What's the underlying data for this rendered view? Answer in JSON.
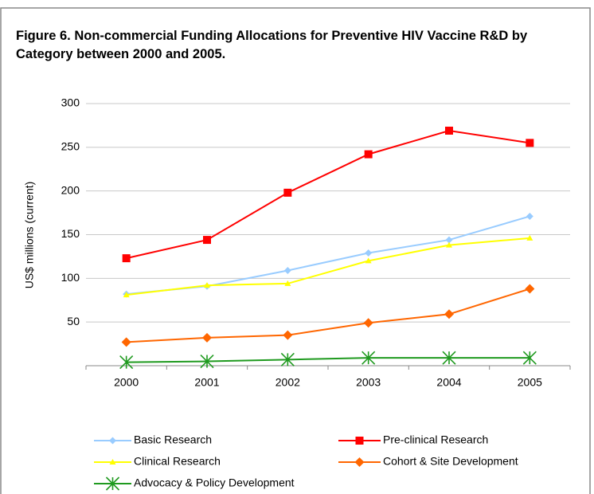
{
  "chart_data": {
    "type": "line",
    "title": "Figure 6. Non-commercial Funding Allocations for Preventive HIV Vaccine R&D by Category between 2000 and 2005.",
    "y_label": "US$ millions (current)",
    "categories": [
      "2000",
      "2001",
      "2002",
      "2003",
      "2004",
      "2005"
    ],
    "ylim": [
      0,
      300
    ],
    "yticks": [
      50,
      100,
      150,
      200,
      250,
      300
    ],
    "grid": true,
    "legend": "bottom",
    "series": [
      {
        "name": "Basic Research",
        "color": "#99ccff",
        "marker": "diamond",
        "values": [
          82,
          91,
          109,
          129,
          144,
          171
        ]
      },
      {
        "name": "Pre-clinical Research",
        "color": "#ff0000",
        "marker": "square",
        "values": [
          123,
          144,
          198,
          242,
          269,
          255
        ]
      },
      {
        "name": "Clinical Research",
        "color": "#ffff00",
        "marker": "triangle",
        "values": [
          81,
          92,
          94,
          120,
          138,
          146
        ]
      },
      {
        "name": "Cohort & Site Development",
        "color": "#ff6600",
        "marker": "diamond",
        "values": [
          27,
          32,
          35,
          49,
          59,
          88
        ]
      },
      {
        "name": "Advocacy & Policy Development",
        "color": "#1f9a1f",
        "marker": "star",
        "values": [
          4,
          5,
          7,
          9,
          9,
          9
        ]
      }
    ]
  }
}
